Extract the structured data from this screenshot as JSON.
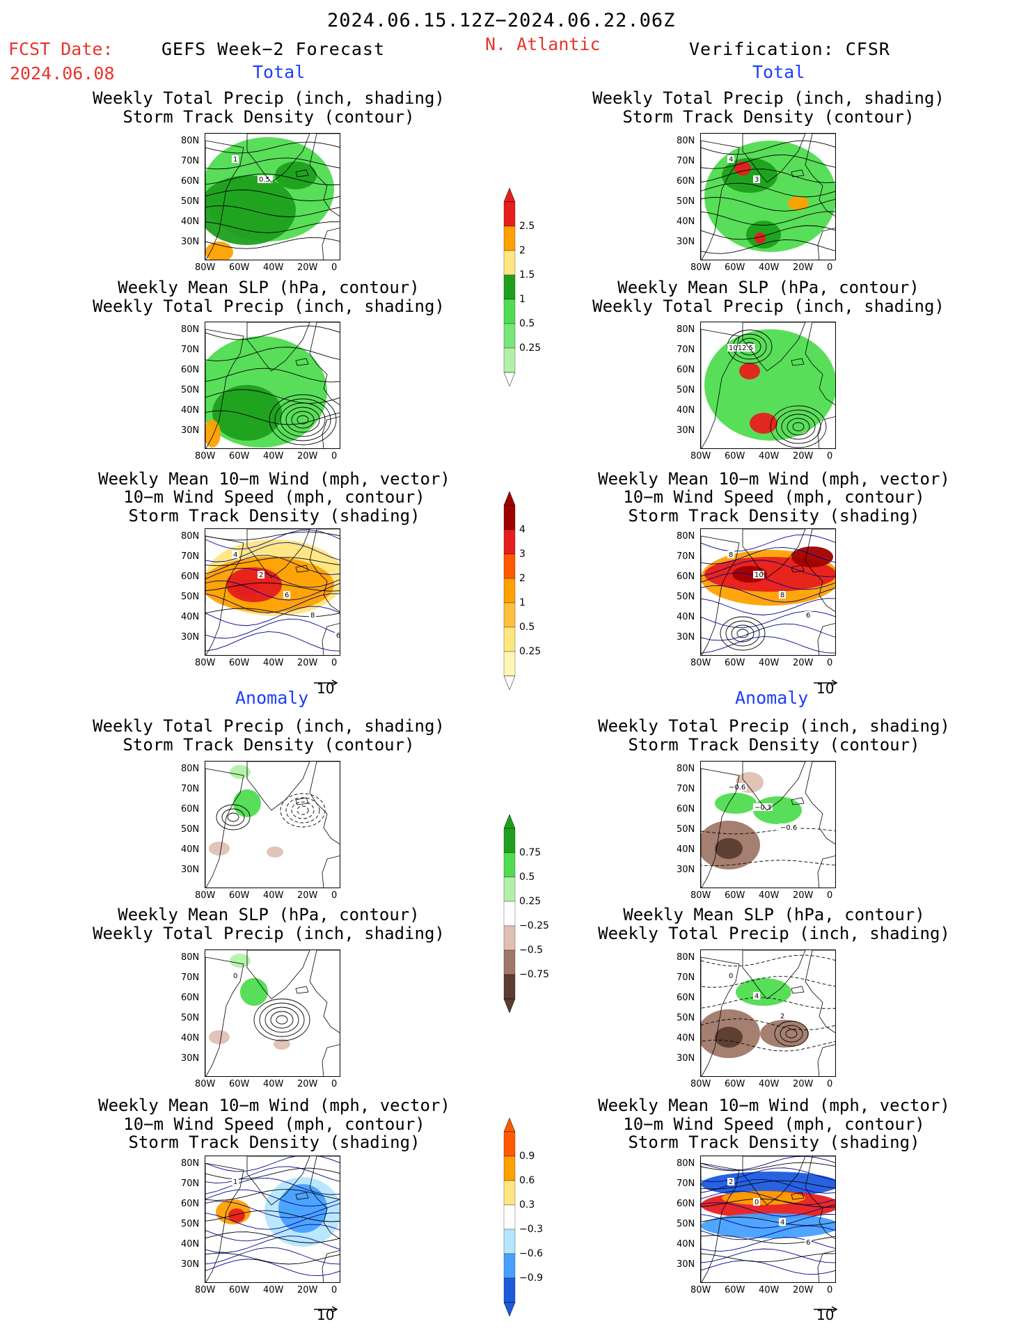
{
  "header": {
    "period": "2024.06.15.12Z−2024.06.22.06Z",
    "fcst_label": "FCST Date:",
    "fcst_date": "2024.06.08",
    "left_title": "GEFS Week−2 Forecast",
    "region": "N. Atlantic",
    "right_title": "Verification: CFSR"
  },
  "sections": {
    "total": "Total",
    "anomaly": "Anomaly"
  },
  "panel_titles": {
    "precip_track": [
      "Weekly Total Precip (inch, shading)",
      "Storm Track Density (contour)"
    ],
    "slp_precip": [
      "Weekly Mean SLP (hPa, contour)",
      "Weekly Total Precip (inch, shading)"
    ],
    "wind": [
      "Weekly Mean 10−m Wind (mph, vector)",
      "10−m Wind Speed (mph, contour)",
      "Storm Track Density (shading)"
    ]
  },
  "axes": {
    "lat": [
      "80N",
      "70N",
      "60N",
      "50N",
      "40N",
      "30N"
    ],
    "lon": [
      "80W",
      "60W",
      "40W",
      "20W",
      "0"
    ]
  },
  "vector_ref": "10",
  "colorbars": {
    "precip_total": [
      "2.5",
      "2",
      "1.5",
      "1",
      "0.5",
      "0.25"
    ],
    "track_total": [
      "4",
      "3",
      "2",
      "1",
      "0.5",
      "0.25"
    ],
    "precip_anom": [
      "0.75",
      "0.5",
      "0.25",
      "−0.25",
      "−0.5",
      "−0.75"
    ],
    "track_anom": [
      "0.9",
      "0.6",
      "0.3",
      "−0.3",
      "−0.6",
      "−0.9"
    ]
  },
  "contour_labels": {
    "fc_precip": [
      "1",
      "0.5"
    ],
    "vf_precip": [
      "4",
      "3"
    ],
    "vf_slp": [
      "1012.5"
    ],
    "fc_wind": [
      "4",
      "2",
      "6",
      "8",
      "6"
    ],
    "vf_wind": [
      "8",
      "10",
      "8",
      "6"
    ],
    "vf_precip_anom": [
      "−0.6",
      "−0.3",
      "−0.6"
    ],
    "fc_slp_anom": [
      "0"
    ],
    "vf_slp_anom": [
      "0",
      "4",
      "2"
    ],
    "fc_wind_anom": [
      "1"
    ],
    "vf_wind_anom": [
      "2",
      "0",
      "4",
      "6"
    ]
  },
  "colors": {
    "red_text": "#e8342a",
    "blue_text": "#1c3cff",
    "green_light": "#b4f0a8",
    "green_mid": "#50dc50",
    "green_dark": "#1ea01e",
    "yellow": "#ffe680",
    "orange": "#ffa000",
    "red": "#e61e1e",
    "dark_red": "#a00000",
    "brown_light": "#e0c0b4",
    "brown_mid": "#a07868",
    "brown_dark": "#5a3c30",
    "blue_light": "#b4e6ff",
    "blue_mid": "#46a0ff",
    "blue_dark": "#1e5adc"
  }
}
